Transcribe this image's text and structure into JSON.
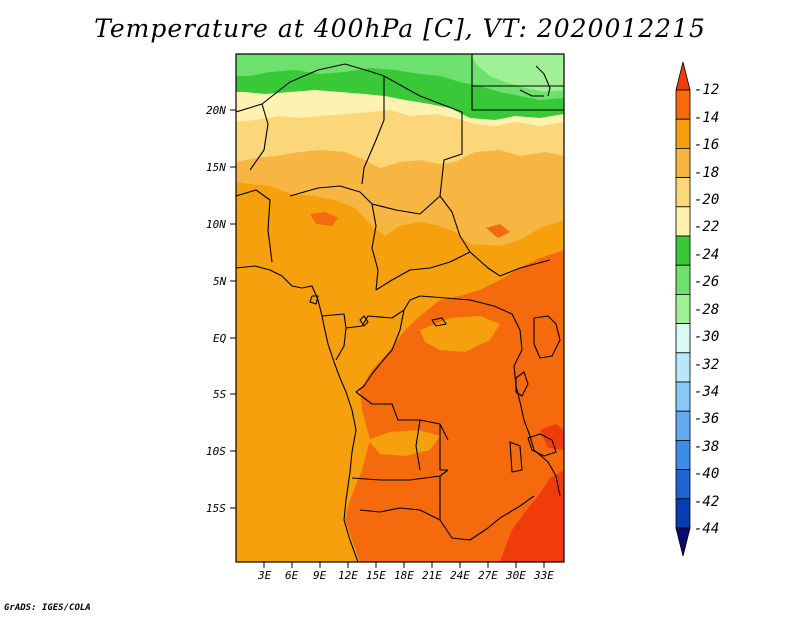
{
  "title": "Temperature at 400hPa [C], VT: 2020012215",
  "credit": "GrADS: IGES/COLA",
  "map": {
    "lat_labels": [
      "20N",
      "15N",
      "10N",
      "5N",
      "EQ",
      "5S",
      "10S",
      "15S"
    ],
    "lon_labels": [
      "3E",
      "6E",
      "9E",
      "12E",
      "15E",
      "18E",
      "21E",
      "24E",
      "27E",
      "30E",
      "33E"
    ]
  },
  "colorbar": {
    "labels": [
      "-12",
      "-14",
      "-16",
      "-18",
      "-20",
      "-22",
      "-24",
      "-26",
      "-28",
      "-30",
      "-32",
      "-34",
      "-36",
      "-38",
      "-40",
      "-42",
      "-44"
    ],
    "colors": [
      "#f03c0c",
      "#f56a0c",
      "#f5a00c",
      "#f7b642",
      "#fbd77a",
      "#fdf2b0",
      "#38c838",
      "#6ee06e",
      "#a0f096",
      "#d8faf2",
      "#b6e8fa",
      "#8cc8f5",
      "#64aaf0",
      "#3c8ce6",
      "#1e64d2",
      "#0a3cb4",
      "#0a0a6e"
    ]
  }
}
